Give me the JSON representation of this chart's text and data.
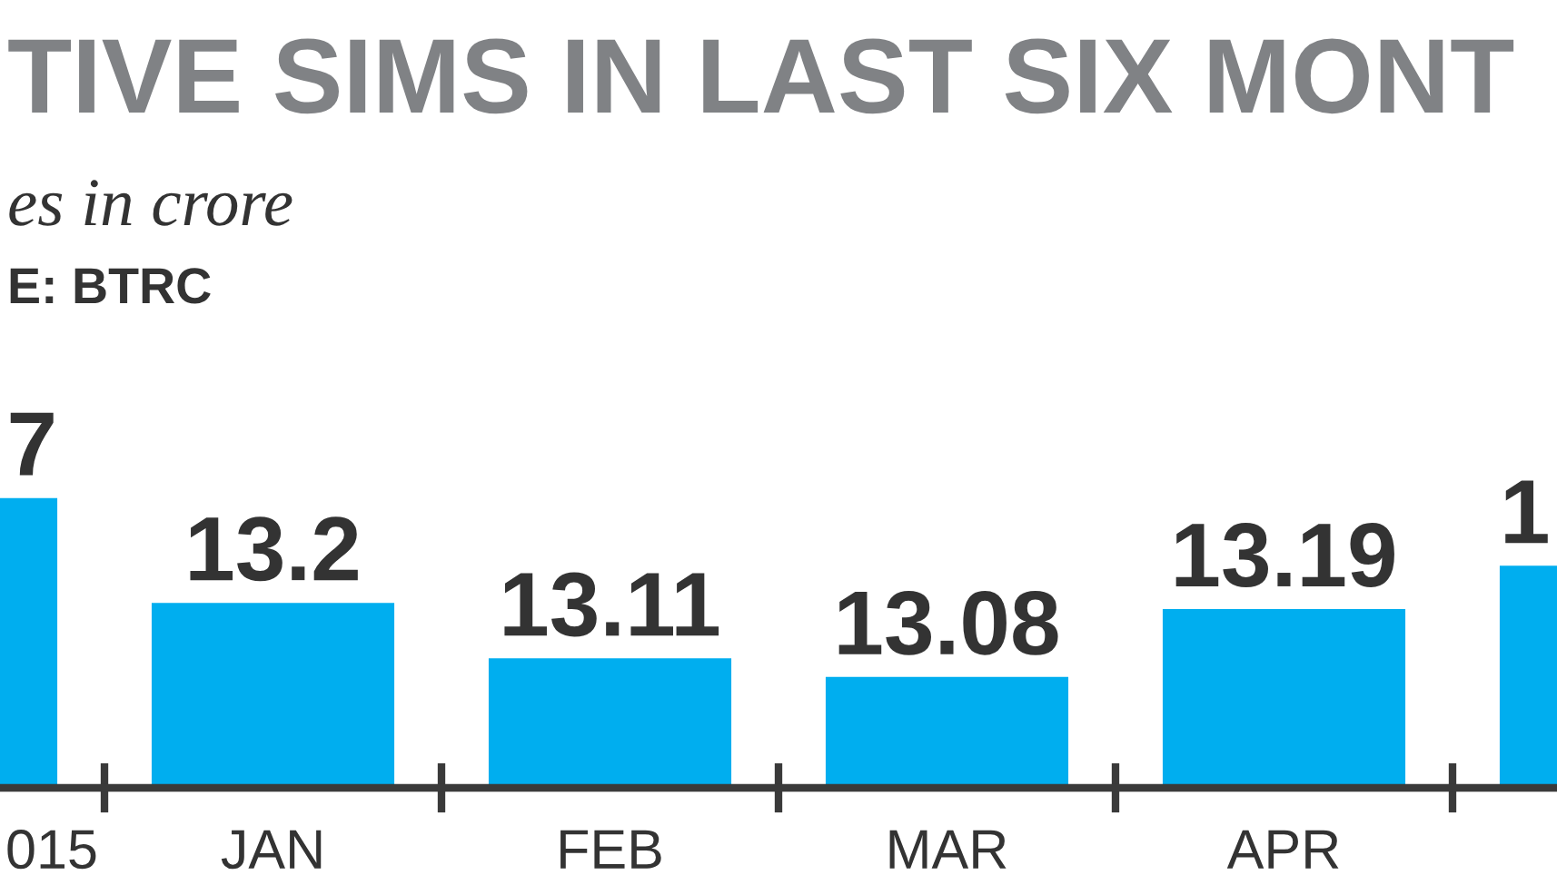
{
  "chart_data": {
    "type": "bar",
    "title": "TIVE SIMS IN LAST SIX MONT",
    "subtitle": "es in crore",
    "annotations": [
      "E: BTRC",
      {
        "text": "7",
        "x": "015",
        "y": 13.37
      },
      {
        "text": "1",
        "y": 13.26
      }
    ],
    "categories": [
      "015",
      "JAN",
      "FEB",
      "MAR",
      "APR",
      null
    ],
    "values": [
      13.37,
      13.2,
      13.11,
      13.08,
      13.19,
      13.26
    ],
    "value_labels": [
      null,
      "13.2",
      "13.11",
      "13.08",
      "13.19",
      null
    ],
    "color": "#00aeef",
    "tick_labels": "x"
  }
}
